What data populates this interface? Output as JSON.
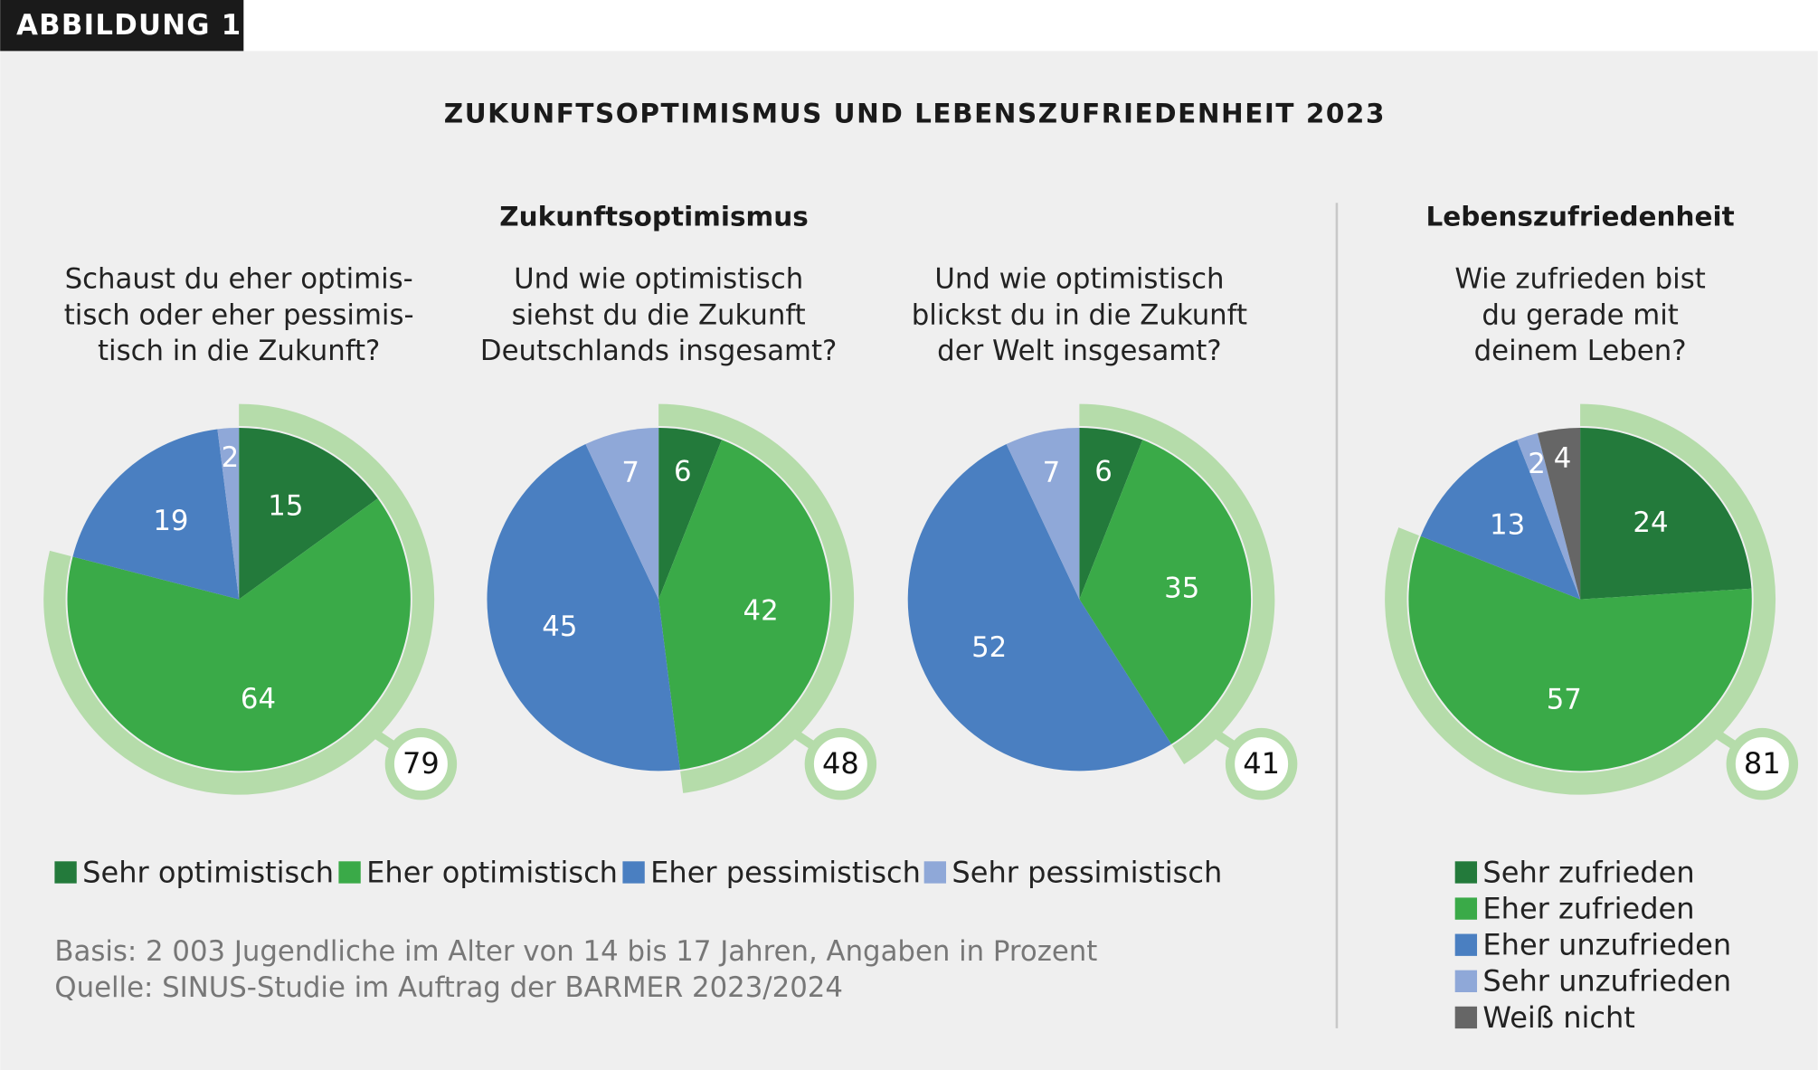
{
  "badge": "ABBILDUNG 1",
  "title": "ZUKUNFTSOPTIMISMUS UND LEBENSZUFRIEDENHEIT 2023",
  "group_titles": [
    "Zukunftsoptimismus",
    "Lebenszufriedenheit"
  ],
  "note": [
    "Basis: 2 003 Jugendliche im Alter von 14 bis 17 Jahren, Angaben in Prozent",
    "Quelle: SINUS-Studie im Auftrag der BARMER 2023/2024"
  ],
  "chart_data": [
    {
      "type": "pie",
      "question": [
        "Schaust du eher optimis-",
        "tisch oder eher pessimis-",
        "tisch in die Zukunft?"
      ],
      "categories": [
        "Sehr optimistisch",
        "Eher optimistisch",
        "Eher pessimistisch",
        "Sehr pessimistisch"
      ],
      "values": [
        15,
        64,
        19,
        2
      ],
      "colors": [
        "#237a3b",
        "#3aaa48",
        "#4a7fc1",
        "#8fa8d8"
      ],
      "total": 79,
      "ring_color": "#b5dcaa"
    },
    {
      "type": "pie",
      "question": [
        "Und wie optimistisch",
        "siehst du die Zukunft",
        "Deutschlands insgesamt?"
      ],
      "categories": [
        "Sehr optimistisch",
        "Eher optimistisch",
        "Eher pessimistisch",
        "Sehr pessimistisch"
      ],
      "values": [
        6,
        42,
        45,
        7
      ],
      "colors": [
        "#237a3b",
        "#3aaa48",
        "#4a7fc1",
        "#8fa8d8"
      ],
      "total": 48,
      "ring_color": "#b5dcaa"
    },
    {
      "type": "pie",
      "question": [
        "Und wie optimistisch",
        "blickst du in die Zukunft",
        "der Welt insgesamt?"
      ],
      "categories": [
        "Sehr optimistisch",
        "Eher optimistisch",
        "Eher pessimistisch",
        "Sehr pessimistisch"
      ],
      "values": [
        6,
        35,
        52,
        7
      ],
      "colors": [
        "#237a3b",
        "#3aaa48",
        "#4a7fc1",
        "#8fa8d8"
      ],
      "total": 41,
      "ring_color": "#b5dcaa"
    },
    {
      "type": "pie",
      "question": [
        "Wie zufrieden bist",
        "du gerade mit",
        "deinem Leben?"
      ],
      "categories": [
        "Sehr zufrieden",
        "Eher zufrieden",
        "Eher unzufrieden",
        "Sehr unzufrieden",
        "Weiß nicht"
      ],
      "values": [
        24,
        57,
        13,
        2,
        4
      ],
      "colors": [
        "#237a3b",
        "#3aaa48",
        "#4a7fc1",
        "#8fa8d8",
        "#666666"
      ],
      "total": 81,
      "ring_color": "#b5dcaa"
    }
  ]
}
